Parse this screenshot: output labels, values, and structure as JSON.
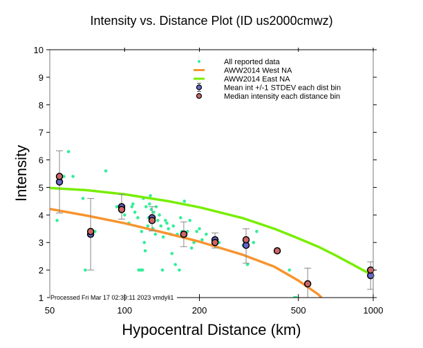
{
  "chart_data": {
    "type": "scatter",
    "title": "Intensity vs. Distance Plot (ID us2000cmwz)",
    "xlabel": "Hypocentral Distance (km)",
    "ylabel": "Intensity",
    "xscale": "log",
    "xlim": [
      50,
      1000
    ],
    "ylim": [
      1,
      10
    ],
    "xticks": [
      50,
      100,
      200,
      500,
      1000
    ],
    "xtick_labels": [
      "50",
      "100",
      "200",
      "500",
      "1000"
    ],
    "yticks": [
      1,
      2,
      3,
      4,
      5,
      6,
      7,
      8,
      9,
      10
    ],
    "ytick_labels": [
      "1",
      "2",
      "3",
      "4",
      "5",
      "6",
      "7",
      "8",
      "9",
      "10"
    ],
    "grid": false,
    "legend_position": "top-right",
    "footer": "Processed Fri Mar 17 02:39:11 2023 vmdyli1",
    "colors": {
      "reported": "#33ee99",
      "west": "#f7942e",
      "east": "#77ee00",
      "mean": "#6666cc",
      "median": "#cc6666",
      "errorbar": "#888888"
    },
    "legend": [
      {
        "label": "All reported data",
        "marker": "dot"
      },
      {
        "label": "AWW2014 West NA",
        "marker": "line-west"
      },
      {
        "label": "AWW2014 East NA",
        "marker": "line-east"
      },
      {
        "label": "Mean int +/-1 STDEV each dist bin",
        "marker": "mean"
      },
      {
        "label": "Median intensity each distance bin",
        "marker": "median"
      }
    ],
    "series": [
      {
        "name": "All reported data",
        "points": [
          [
            53.5,
            3.8
          ],
          [
            57,
            5.4
          ],
          [
            59.5,
            6.3
          ],
          [
            62,
            5.4
          ],
          [
            68,
            4.6
          ],
          [
            69.5,
            2.0
          ],
          [
            76,
            3.4
          ],
          [
            84,
            5.6
          ],
          [
            93,
            4.3
          ],
          [
            95,
            4.3
          ],
          [
            99,
            4.2
          ],
          [
            100,
            4.0
          ],
          [
            104,
            3.7
          ],
          [
            107,
            4.3
          ],
          [
            108,
            4.4
          ],
          [
            110,
            4.1
          ],
          [
            113,
            3.9
          ],
          [
            114,
            2.0
          ],
          [
            116,
            2.0
          ],
          [
            117,
            3.4
          ],
          [
            118,
            2.0
          ],
          [
            119,
            4.6
          ],
          [
            120,
            3.0
          ],
          [
            121,
            2.7
          ],
          [
            122,
            4.3
          ],
          [
            124,
            3.6
          ],
          [
            125,
            3.9
          ],
          [
            126,
            4.4
          ],
          [
            127,
            4.7
          ],
          [
            128,
            4.2
          ],
          [
            130,
            3.5
          ],
          [
            131,
            4.1
          ],
          [
            133,
            3.3
          ],
          [
            134,
            4.3
          ],
          [
            136,
            3.8
          ],
          [
            138,
            4.0
          ],
          [
            140,
            3.6
          ],
          [
            142,
            2.0
          ],
          [
            143,
            3.2
          ],
          [
            146,
            3.8
          ],
          [
            148,
            3.7
          ],
          [
            150,
            3.5
          ],
          [
            153,
            3.3
          ],
          [
            155,
            2.6
          ],
          [
            157,
            3.6
          ],
          [
            160,
            2.2
          ],
          [
            163,
            3.3
          ],
          [
            166,
            2.0
          ],
          [
            168,
            3.9
          ],
          [
            170,
            3.4
          ],
          [
            174,
            4.5
          ],
          [
            179,
            3.4
          ],
          [
            183,
            3.8
          ],
          [
            186,
            2.8
          ],
          [
            190,
            3.0
          ],
          [
            195,
            3.4
          ],
          [
            200,
            3.5
          ],
          [
            205,
            3.1
          ],
          [
            213,
            3.3
          ],
          [
            227,
            3.1
          ],
          [
            232,
            2.9
          ],
          [
            240,
            3.0
          ],
          [
            300,
            2.9
          ],
          [
            312,
            2.2
          ],
          [
            330,
            3.0
          ],
          [
            340,
            3.4
          ],
          [
            460,
            2.0
          ],
          [
            482,
            1.0
          ],
          [
            490,
            1.0
          ],
          [
            955,
            2.0
          ]
        ]
      },
      {
        "name": "AWW2014 West NA",
        "type": "line",
        "x": [
          50,
          70,
          100,
          150,
          200,
          300,
          400,
          500,
          600,
          620
        ],
        "y": [
          4.22,
          3.98,
          3.7,
          3.32,
          3.03,
          2.55,
          2.12,
          1.62,
          1.12,
          1.0
        ]
      },
      {
        "name": "AWW2014 East NA",
        "type": "line",
        "x": [
          50,
          70,
          100,
          150,
          200,
          300,
          400,
          500,
          600,
          700,
          800,
          900,
          1000
        ],
        "y": [
          4.98,
          4.9,
          4.75,
          4.5,
          4.28,
          3.88,
          3.5,
          3.15,
          2.85,
          2.55,
          2.27,
          2.02,
          1.8
        ]
      },
      {
        "name": "Mean int +/-1 STDEV each dist bin",
        "bins": [
          {
            "x": 54.7,
            "mean": 5.2,
            "lo": 4.07,
            "hi": 6.33
          },
          {
            "x": 73,
            "mean": 3.3,
            "lo": 2.0,
            "hi": 4.6
          },
          {
            "x": 97.3,
            "mean": 4.3,
            "lo": 3.85,
            "hi": 4.75
          },
          {
            "x": 129,
            "mean": 3.9,
            "lo": 3.42,
            "hi": 4.3
          },
          {
            "x": 173,
            "mean": 3.3,
            "lo": 2.85,
            "hi": 3.75
          },
          {
            "x": 231,
            "mean": 3.1,
            "lo": 2.8,
            "hi": 3.35
          },
          {
            "x": 308,
            "mean": 2.9,
            "lo": 2.25,
            "hi": 3.5
          },
          {
            "x": 976,
            "mean": 1.8,
            "lo": 1.3,
            "hi": 2.3
          }
        ]
      },
      {
        "name": "Median intensity each distance bin",
        "bins": [
          {
            "x": 54.7,
            "median": 5.4
          },
          {
            "x": 73,
            "median": 3.4
          },
          {
            "x": 97.3,
            "median": 4.2
          },
          {
            "x": 129,
            "median": 3.8
          },
          {
            "x": 173,
            "median": 3.3
          },
          {
            "x": 231,
            "median": 3.0
          },
          {
            "x": 308,
            "median": 3.1
          },
          {
            "x": 411,
            "median": 2.7
          },
          {
            "x": 545,
            "median": 1.5,
            "lo": 1.0,
            "hi": 2.07
          },
          {
            "x": 976,
            "median": 2.0
          }
        ]
      }
    ]
  }
}
